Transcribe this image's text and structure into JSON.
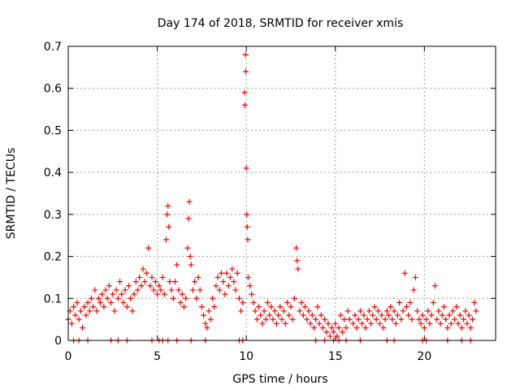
{
  "chart_data": {
    "type": "scatter",
    "title": "Day 174 of 2018, SRMTID for receiver xmis",
    "xlabel": "GPS time / hours",
    "ylabel": "SRMTID / TECUs",
    "xlim": [
      0,
      24
    ],
    "ylim": [
      0,
      0.7
    ],
    "xticks": [
      0,
      5,
      10,
      15,
      20
    ],
    "yticks": [
      0,
      0.1,
      0.2,
      0.3,
      0.4,
      0.5,
      0.6,
      0.7
    ],
    "ytick_labels": [
      "0",
      "0.1",
      "0.2",
      "0.3",
      "0.4",
      "0.5",
      "0.6",
      "0.7"
    ],
    "grid": true,
    "marker": "+",
    "color": "#ff0000",
    "series": [
      {
        "name": "SRMTID",
        "points": [
          [
            0.0,
            0.05
          ],
          [
            0.1,
            0.07
          ],
          [
            0.2,
            0.04
          ],
          [
            0.3,
            0.08
          ],
          [
            0.4,
            0.06
          ],
          [
            0.5,
            0.09
          ],
          [
            0.6,
            0.05
          ],
          [
            0.7,
            0.07
          ],
          [
            0.8,
            0.03
          ],
          [
            0.9,
            0.08
          ],
          [
            1.0,
            0.06
          ],
          [
            1.1,
            0.09
          ],
          [
            1.2,
            0.07
          ],
          [
            1.3,
            0.1
          ],
          [
            1.4,
            0.08
          ],
          [
            1.5,
            0.12
          ],
          [
            1.6,
            0.07
          ],
          [
            1.7,
            0.1
          ],
          [
            1.8,
            0.09
          ],
          [
            1.9,
            0.11
          ],
          [
            2.0,
            0.08
          ],
          [
            2.1,
            0.12
          ],
          [
            2.2,
            0.1
          ],
          [
            2.3,
            0.13
          ],
          [
            2.4,
            0.09
          ],
          [
            2.5,
            0.11
          ],
          [
            2.6,
            0.07
          ],
          [
            2.7,
            0.12
          ],
          [
            2.8,
            0.1
          ],
          [
            2.9,
            0.14
          ],
          [
            3.0,
            0.11
          ],
          [
            3.1,
            0.09
          ],
          [
            3.2,
            0.12
          ],
          [
            3.3,
            0.08
          ],
          [
            3.4,
            0.13
          ],
          [
            3.5,
            0.1
          ],
          [
            3.6,
            0.07
          ],
          [
            3.7,
            0.11
          ],
          [
            3.8,
            0.14
          ],
          [
            3.9,
            0.12
          ],
          [
            4.0,
            0.15
          ],
          [
            4.1,
            0.13
          ],
          [
            4.2,
            0.17
          ],
          [
            4.3,
            0.14
          ],
          [
            4.4,
            0.16
          ],
          [
            4.5,
            0.22
          ],
          [
            4.6,
            0.13
          ],
          [
            4.7,
            0.15
          ],
          [
            4.8,
            0.12
          ],
          [
            4.9,
            0.14
          ],
          [
            5.0,
            0.11
          ],
          [
            5.1,
            0.13
          ],
          [
            5.2,
            0.12
          ],
          [
            5.3,
            0.15
          ],
          [
            5.4,
            0.11
          ],
          [
            5.5,
            0.24
          ],
          [
            5.55,
            0.3
          ],
          [
            5.6,
            0.32
          ],
          [
            5.65,
            0.27
          ],
          [
            5.7,
            0.14
          ],
          [
            5.8,
            0.12
          ],
          [
            5.9,
            0.1
          ],
          [
            6.0,
            0.14
          ],
          [
            6.1,
            0.18
          ],
          [
            6.2,
            0.12
          ],
          [
            6.3,
            0.09
          ],
          [
            6.4,
            0.11
          ],
          [
            6.5,
            0.08
          ],
          [
            6.6,
            0.1
          ],
          [
            6.7,
            0.22
          ],
          [
            6.75,
            0.29
          ],
          [
            6.8,
            0.33
          ],
          [
            6.85,
            0.2
          ],
          [
            6.9,
            0.18
          ],
          [
            7.0,
            0.12
          ],
          [
            7.1,
            0.14
          ],
          [
            7.2,
            0.1
          ],
          [
            7.3,
            0.15
          ],
          [
            7.4,
            0.12
          ],
          [
            7.5,
            0.08
          ],
          [
            7.6,
            0.06
          ],
          [
            7.7,
            0.04
          ],
          [
            7.8,
            0.03
          ],
          [
            7.9,
            0.07
          ],
          [
            8.0,
            0.05
          ],
          [
            8.1,
            0.1
          ],
          [
            8.2,
            0.08
          ],
          [
            8.3,
            0.13
          ],
          [
            8.4,
            0.15
          ],
          [
            8.5,
            0.12
          ],
          [
            8.6,
            0.16
          ],
          [
            8.7,
            0.14
          ],
          [
            8.8,
            0.11
          ],
          [
            8.9,
            0.16
          ],
          [
            9.0,
            0.13
          ],
          [
            9.1,
            0.15
          ],
          [
            9.2,
            0.17
          ],
          [
            9.3,
            0.14
          ],
          [
            9.4,
            0.12
          ],
          [
            9.5,
            0.16
          ],
          [
            9.6,
            0.1
          ],
          [
            9.7,
            0.07
          ],
          [
            9.8,
            0.09
          ],
          [
            9.9,
            0.59
          ],
          [
            9.92,
            0.56
          ],
          [
            9.95,
            0.68
          ],
          [
            9.97,
            0.64
          ],
          [
            10.0,
            0.41
          ],
          [
            10.02,
            0.3
          ],
          [
            10.05,
            0.27
          ],
          [
            10.08,
            0.24
          ],
          [
            10.1,
            0.15
          ],
          [
            10.2,
            0.13
          ],
          [
            10.3,
            0.11
          ],
          [
            10.4,
            0.09
          ],
          [
            10.5,
            0.07
          ],
          [
            10.6,
            0.05
          ],
          [
            10.7,
            0.08
          ],
          [
            10.8,
            0.06
          ],
          [
            10.9,
            0.04
          ],
          [
            11.0,
            0.07
          ],
          [
            11.1,
            0.05
          ],
          [
            11.2,
            0.09
          ],
          [
            11.3,
            0.06
          ],
          [
            11.4,
            0.08
          ],
          [
            11.5,
            0.05
          ],
          [
            11.6,
            0.07
          ],
          [
            11.7,
            0.04
          ],
          [
            11.8,
            0.06
          ],
          [
            11.9,
            0.08
          ],
          [
            12.0,
            0.05
          ],
          [
            12.1,
            0.07
          ],
          [
            12.2,
            0.04
          ],
          [
            12.3,
            0.09
          ],
          [
            12.4,
            0.06
          ],
          [
            12.5,
            0.08
          ],
          [
            12.6,
            0.05
          ],
          [
            12.7,
            0.1
          ],
          [
            12.8,
            0.22
          ],
          [
            12.85,
            0.19
          ],
          [
            12.9,
            0.17
          ],
          [
            13.0,
            0.07
          ],
          [
            13.1,
            0.09
          ],
          [
            13.2,
            0.06
          ],
          [
            13.3,
            0.08
          ],
          [
            13.4,
            0.05
          ],
          [
            13.5,
            0.07
          ],
          [
            13.6,
            0.04
          ],
          [
            13.7,
            0.06
          ],
          [
            13.8,
            0.03
          ],
          [
            13.9,
            0.05
          ],
          [
            14.0,
            0.08
          ],
          [
            14.1,
            0.04
          ],
          [
            14.2,
            0.06
          ],
          [
            14.3,
            0.03
          ],
          [
            14.4,
            0.05
          ],
          [
            14.5,
            0.02
          ],
          [
            14.6,
            0.04
          ],
          [
            14.7,
            0.01
          ],
          [
            14.8,
            0.03
          ],
          [
            14.9,
            0.02
          ],
          [
            15.0,
            0.04
          ],
          [
            15.1,
            0.01
          ],
          [
            15.2,
            0.03
          ],
          [
            15.3,
            0.06
          ],
          [
            15.4,
            0.02
          ],
          [
            15.5,
            0.05
          ],
          [
            15.6,
            0.03
          ],
          [
            15.7,
            0.07
          ],
          [
            15.8,
            0.05
          ],
          [
            16.0,
            0.04
          ],
          [
            16.1,
            0.06
          ],
          [
            16.2,
            0.03
          ],
          [
            16.3,
            0.05
          ],
          [
            16.4,
            0.07
          ],
          [
            16.5,
            0.04
          ],
          [
            16.6,
            0.06
          ],
          [
            16.7,
            0.03
          ],
          [
            16.8,
            0.05
          ],
          [
            16.9,
            0.07
          ],
          [
            17.0,
            0.04
          ],
          [
            17.1,
            0.06
          ],
          [
            17.2,
            0.08
          ],
          [
            17.3,
            0.05
          ],
          [
            17.4,
            0.07
          ],
          [
            17.5,
            0.04
          ],
          [
            17.6,
            0.06
          ],
          [
            17.7,
            0.03
          ],
          [
            17.8,
            0.05
          ],
          [
            17.9,
            0.07
          ],
          [
            18.0,
            0.06
          ],
          [
            18.1,
            0.08
          ],
          [
            18.2,
            0.05
          ],
          [
            18.3,
            0.07
          ],
          [
            18.4,
            0.04
          ],
          [
            18.5,
            0.06
          ],
          [
            18.6,
            0.09
          ],
          [
            18.7,
            0.05
          ],
          [
            18.8,
            0.07
          ],
          [
            18.9,
            0.16
          ],
          [
            19.0,
            0.08
          ],
          [
            19.1,
            0.06
          ],
          [
            19.2,
            0.09
          ],
          [
            19.3,
            0.05
          ],
          [
            19.4,
            0.12
          ],
          [
            19.5,
            0.15
          ],
          [
            19.6,
            0.07
          ],
          [
            19.7,
            0.05
          ],
          [
            19.8,
            0.04
          ],
          [
            19.9,
            0.06
          ],
          [
            20.0,
            0.03
          ],
          [
            20.1,
            0.05
          ],
          [
            20.2,
            0.07
          ],
          [
            20.3,
            0.04
          ],
          [
            20.4,
            0.06
          ],
          [
            20.5,
            0.09
          ],
          [
            20.6,
            0.13
          ],
          [
            20.7,
            0.05
          ],
          [
            20.8,
            0.07
          ],
          [
            20.9,
            0.04
          ],
          [
            21.0,
            0.06
          ],
          [
            21.1,
            0.08
          ],
          [
            21.2,
            0.05
          ],
          [
            21.3,
            0.03
          ],
          [
            21.4,
            0.06
          ],
          [
            21.5,
            0.04
          ],
          [
            21.6,
            0.07
          ],
          [
            21.7,
            0.05
          ],
          [
            21.8,
            0.08
          ],
          [
            21.9,
            0.04
          ],
          [
            22.0,
            0.06
          ],
          [
            22.1,
            0.03
          ],
          [
            22.2,
            0.05
          ],
          [
            22.3,
            0.07
          ],
          [
            22.4,
            0.04
          ],
          [
            22.5,
            0.06
          ],
          [
            22.6,
            0.03
          ],
          [
            22.7,
            0.05
          ],
          [
            22.8,
            0.09
          ],
          [
            22.9,
            0.07
          ],
          [
            0.3,
            0.0
          ],
          [
            0.6,
            0.0
          ],
          [
            1.1,
            0.0
          ],
          [
            2.4,
            0.0
          ],
          [
            2.8,
            0.0
          ],
          [
            3.3,
            0.0
          ],
          [
            4.7,
            0.0
          ],
          [
            5.1,
            0.0
          ],
          [
            5.3,
            0.0
          ],
          [
            5.6,
            0.0
          ],
          [
            6.1,
            0.0
          ],
          [
            6.9,
            0.0
          ],
          [
            7.7,
            0.0
          ],
          [
            9.6,
            0.0
          ],
          [
            9.8,
            0.0
          ],
          [
            13.9,
            0.0
          ],
          [
            14.4,
            0.0
          ],
          [
            14.9,
            0.0
          ],
          [
            15.2,
            0.0
          ],
          [
            15.6,
            0.0
          ],
          [
            16.4,
            0.0
          ],
          [
            17.9,
            0.0
          ],
          [
            18.3,
            0.0
          ],
          [
            19.9,
            0.0
          ],
          [
            20.1,
            0.0
          ],
          [
            21.3,
            0.0
          ],
          [
            22.1,
            0.0
          ],
          [
            22.6,
            0.0
          ]
        ]
      }
    ]
  }
}
